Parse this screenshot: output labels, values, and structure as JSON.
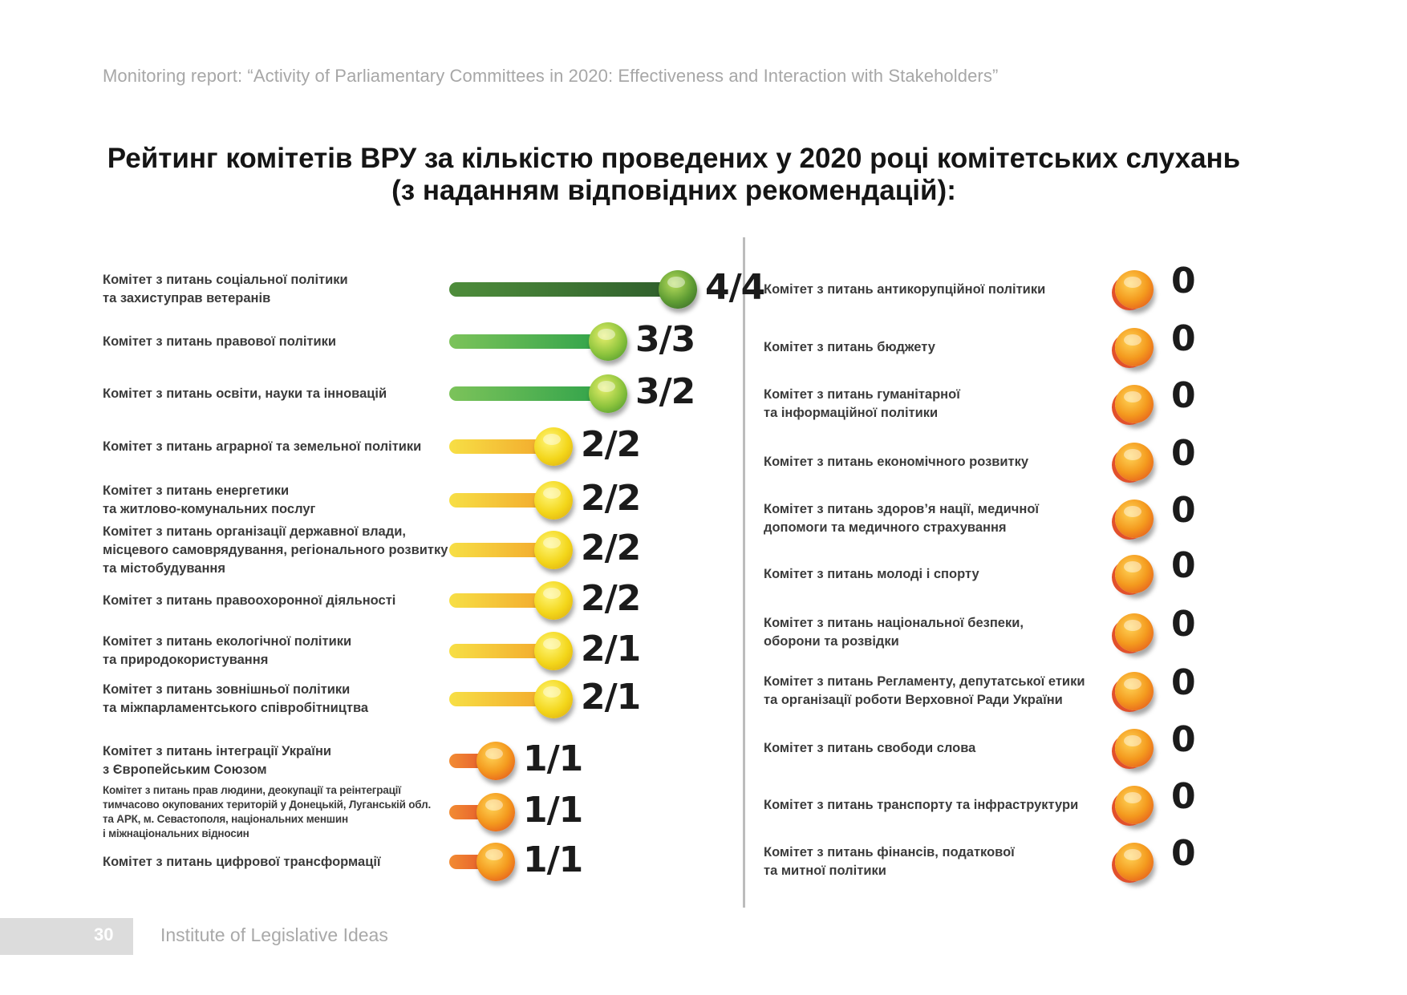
{
  "header": {
    "report_title": "Monitoring report: “Activity of Parliamentary Committees in 2020: Effectiveness and Interaction with Stakeholders”"
  },
  "title": {
    "line1": "Рейтинг комітетів ВРУ за кількістю проведених у 2020 році комітетських слухань",
    "line2": "(з наданням відповідних рекомендацій):"
  },
  "colors": {
    "dark_green": "#3d7a34",
    "green": "#5bb347",
    "yellow": "#f0cf1c",
    "orange": "#ef6f2a",
    "red_orange": "#e2502b"
  },
  "chart_data": {
    "type": "table",
    "left": [
      {
        "label": "Комітет з питань соціальної політики\nта захиступрав ветеранів",
        "value": "4/4",
        "color": "dark_green",
        "level": 4,
        "held": 4,
        "with_recommendations": 4
      },
      {
        "label": "Комітет з питань правової політики",
        "value": "3/3",
        "color": "green",
        "level": 3,
        "held": 3,
        "with_recommendations": 3
      },
      {
        "label": "Комітет з питань освіти, науки та інновацій",
        "value": "3/2",
        "color": "green",
        "level": 3,
        "held": 3,
        "with_recommendations": 2
      },
      {
        "label": "Комітет з питань аграрної та земельної політики",
        "value": "2/2",
        "color": "yellow",
        "level": 2,
        "held": 2,
        "with_recommendations": 2
      },
      {
        "label": "Комітет з питань енергетики\nта житлово-комунальних послуг",
        "value": "2/2",
        "color": "yellow",
        "level": 2,
        "held": 2,
        "with_recommendations": 2
      },
      {
        "label": "Комітет з питань організації державної влади,\nмісцевого самоврядування, регіонального розвитку\nта містобудування",
        "value": "2/2",
        "color": "yellow",
        "level": 2,
        "held": 2,
        "with_recommendations": 2
      },
      {
        "label": "Комітет з питань правоохоронної діяльності",
        "value": "2/2",
        "color": "yellow",
        "level": 2,
        "held": 2,
        "with_recommendations": 2
      },
      {
        "label": "Комітет з питань екологічної політики\nта природокористування",
        "value": "2/1",
        "color": "yellow",
        "level": 2,
        "held": 2,
        "with_recommendations": 1
      },
      {
        "label": "Комітет з питань зовнішньої політики\nта міжпарламентського співробітництва",
        "value": "2/1",
        "color": "yellow",
        "level": 2,
        "held": 2,
        "with_recommendations": 1
      },
      {
        "label": "Комітет з питань інтеграції України\nз Європейським Союзом",
        "value": "1/1",
        "color": "orange",
        "level": 1,
        "held": 1,
        "with_recommendations": 1
      },
      {
        "label": "Комітет з питань прав людини, деокупації та реінтеграції\nтимчасово окупованих територій у Донецькій, Луганській обл.\nта АРК, м. Севастополя, національних меншин\nі міжнаціональних відносин",
        "value": "1/1",
        "color": "orange",
        "level": 1,
        "held": 1,
        "with_recommendations": 1,
        "small": true
      },
      {
        "label": "Комітет з питань цифрової трансформації",
        "value": "1/1",
        "color": "orange",
        "level": 1,
        "held": 1,
        "with_recommendations": 1
      }
    ],
    "right": [
      {
        "label": "Комітет з питань антикорупційної політики",
        "value": "0"
      },
      {
        "label": "Комітет з питань бюджету",
        "value": "0"
      },
      {
        "label": "Комітет з питань гуманітарної\nта інформаційної політики",
        "value": "0"
      },
      {
        "label": "Комітет з питань економічного розвитку",
        "value": "0"
      },
      {
        "label": "Комітет з питань здоров’я нації, медичної\nдопомоги та медичного страхування",
        "value": "0"
      },
      {
        "label": "Комітет з питань молоді і спорту",
        "value": "0"
      },
      {
        "label": "Комітет з питань національної безпеки,\nоборони та розвідки",
        "value": "0"
      },
      {
        "label": "Комітет з питань Регламенту, депутатської етики\nта організації роботи Верховної Ради України",
        "value": "0"
      },
      {
        "label": "Комітет з питань свободи слова",
        "value": "0"
      },
      {
        "label": "Комітет з питань транспорту та інфраструктури",
        "value": "0"
      },
      {
        "label": "Комітет з питань фінансів, податкової\nта митної політики",
        "value": "0"
      }
    ]
  },
  "footer": {
    "page_number": "30",
    "org": "Institute of Legislative Ideas"
  }
}
